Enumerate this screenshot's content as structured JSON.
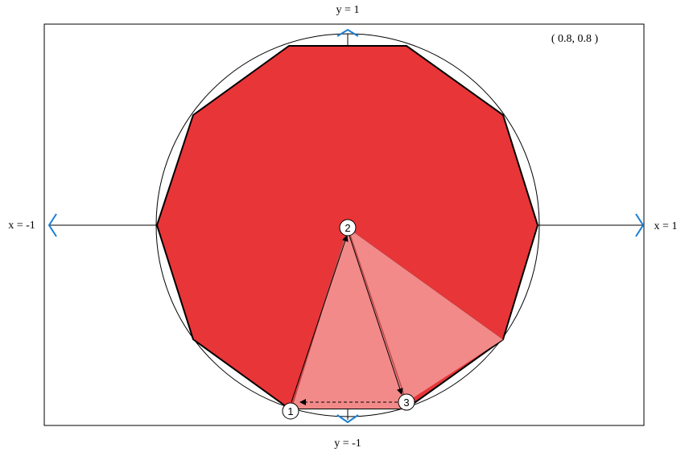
{
  "labels": {
    "top": "y = 1",
    "bottom": "y = -1",
    "left": "x = -1",
    "right": "x = 1",
    "coordinate": "( 0.8, 0.8 )"
  },
  "markers": [
    "1",
    "2",
    "3"
  ],
  "colors": {
    "polygon_fill": "#e83538",
    "wedge_fill": "#f28a8a",
    "arrow_blue": "#1a7fd4",
    "stroke": "#000000"
  }
}
